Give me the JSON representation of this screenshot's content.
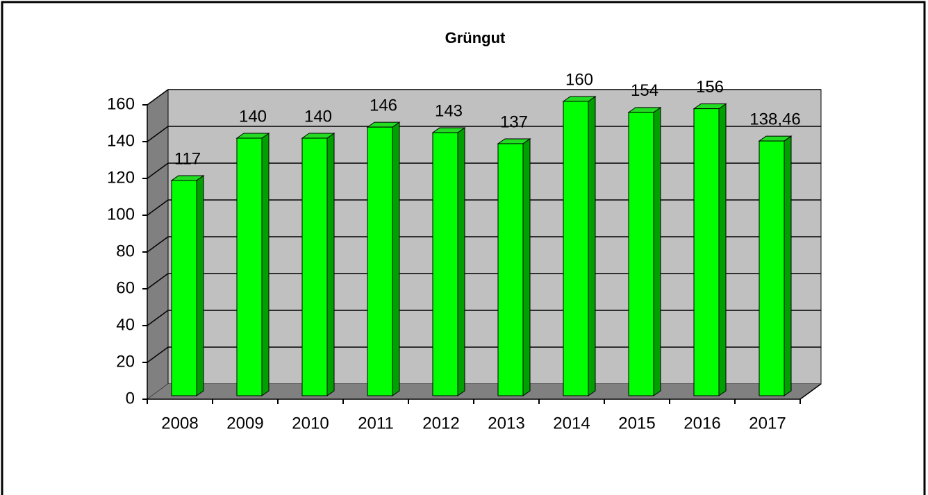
{
  "chart_data": {
    "type": "bar",
    "title": "Grüngut",
    "categories": [
      "2008",
      "2009",
      "2010",
      "2011",
      "2012",
      "2013",
      "2014",
      "2015",
      "2016",
      "2017"
    ],
    "values": [
      117,
      140,
      140,
      146,
      143,
      137,
      160,
      154,
      156,
      138.46
    ],
    "value_labels": [
      "117",
      "140",
      "140",
      "146",
      "143",
      "137",
      "160",
      "154",
      "156",
      "138,46"
    ],
    "color": "#00ff00",
    "ylim": [
      0,
      160
    ],
    "yticks": [
      0,
      20,
      40,
      60,
      80,
      100,
      120,
      140,
      160
    ],
    "grid": true
  }
}
